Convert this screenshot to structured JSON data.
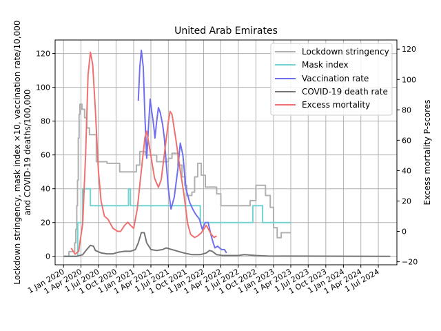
{
  "chart_data": {
    "type": "line",
    "title": "United Arab Emirates",
    "ylabel_left_line1": "Lockdown stringency, mask index ×10, vaccination rate/10,000",
    "ylabel_left_line2": "and COVID-19 deaths/100,000",
    "ylabel_right": "Excess mortality P-scores",
    "ylim_left": [
      -5,
      128
    ],
    "ylim_right": [
      -22,
      126
    ],
    "yticks_left": [
      0,
      20,
      40,
      60,
      80,
      100,
      120
    ],
    "yticks_right": [
      -20,
      0,
      20,
      40,
      60,
      80,
      100,
      120
    ],
    "xlim": [
      "2019-11-18",
      "2024-10-06"
    ],
    "xticks": [
      {
        "date": "2020-01-01",
        "label": "1 Jan 2020"
      },
      {
        "date": "2020-04-01",
        "label": "1 Apr 2020"
      },
      {
        "date": "2020-07-01",
        "label": "1 Jul 2020"
      },
      {
        "date": "2020-10-01",
        "label": "1 Oct 2020"
      },
      {
        "date": "2021-01-01",
        "label": "1 Jan 2021"
      },
      {
        "date": "2021-04-01",
        "label": "1 Apr 2021"
      },
      {
        "date": "2021-07-01",
        "label": "1 Jul 2021"
      },
      {
        "date": "2021-10-01",
        "label": "1 Oct 2021"
      },
      {
        "date": "2022-01-01",
        "label": "1 Jan 2022"
      },
      {
        "date": "2022-04-01",
        "label": "1 Apr 2022"
      },
      {
        "date": "2022-07-01",
        "label": "1 Jul 2022"
      },
      {
        "date": "2022-10-01",
        "label": "1 Oct 2022"
      },
      {
        "date": "2023-01-01",
        "label": "1 Jan 2023"
      },
      {
        "date": "2023-04-01",
        "label": "1 Apr 2023"
      },
      {
        "date": "2023-07-01",
        "label": "1 Jul 2023"
      },
      {
        "date": "2023-10-01",
        "label": "1 Oct 2023"
      },
      {
        "date": "2024-01-01",
        "label": "1 Jan 2024"
      },
      {
        "date": "2024-04-01",
        "label": "1 Apr 2024"
      },
      {
        "date": "2024-07-01",
        "label": "1 Jul 2024"
      }
    ],
    "grid": true,
    "legend_position": "top-right",
    "series": [
      {
        "name": "Lockdown stringency",
        "color": "#b0b0b0",
        "axis": "left",
        "step": true,
        "points": [
          [
            "2020-01-01",
            0
          ],
          [
            "2020-01-29",
            2.8
          ],
          [
            "2020-02-20",
            2.8
          ],
          [
            "2020-02-28",
            8
          ],
          [
            "2020-03-05",
            16
          ],
          [
            "2020-03-10",
            30
          ],
          [
            "2020-03-14",
            45
          ],
          [
            "2020-03-18",
            70
          ],
          [
            "2020-03-22",
            84
          ],
          [
            "2020-03-26",
            90
          ],
          [
            "2020-04-06",
            87
          ],
          [
            "2020-04-20",
            82
          ],
          [
            "2020-05-01",
            76
          ],
          [
            "2020-05-15",
            72
          ],
          [
            "2020-06-20",
            56
          ],
          [
            "2020-08-15",
            55
          ],
          [
            "2020-09-15",
            55
          ],
          [
            "2020-10-20",
            50
          ],
          [
            "2020-11-20",
            50
          ],
          [
            "2021-01-15",
            54
          ],
          [
            "2021-02-02",
            62
          ],
          [
            "2021-03-02",
            60
          ],
          [
            "2021-04-01",
            60
          ],
          [
            "2021-05-01",
            56
          ],
          [
            "2021-07-01",
            58
          ],
          [
            "2021-07-20",
            61
          ],
          [
            "2021-08-20",
            54
          ],
          [
            "2021-09-10",
            47
          ],
          [
            "2021-09-25",
            42
          ],
          [
            "2021-10-05",
            36
          ],
          [
            "2021-10-20",
            36
          ],
          [
            "2021-11-01",
            38
          ],
          [
            "2021-11-15",
            47
          ],
          [
            "2021-12-01",
            55
          ],
          [
            "2021-12-20",
            48
          ],
          [
            "2022-01-10",
            41
          ],
          [
            "2022-03-10",
            37
          ],
          [
            "2022-04-01",
            30
          ],
          [
            "2022-07-01",
            30
          ],
          [
            "2022-07-25",
            30
          ],
          [
            "2022-08-05",
            30
          ],
          [
            "2022-09-01",
            33
          ],
          [
            "2022-10-01",
            42
          ],
          [
            "2022-11-20",
            36
          ],
          [
            "2022-12-15",
            29
          ],
          [
            "2023-01-01",
            17
          ],
          [
            "2023-01-20",
            11
          ],
          [
            "2023-02-10",
            14
          ],
          [
            "2023-04-01",
            14
          ]
        ]
      },
      {
        "name": "Mask index",
        "color": "#73d2d2",
        "axis": "left",
        "step": true,
        "points": [
          [
            "2020-01-01",
            0
          ],
          [
            "2020-03-15",
            20
          ],
          [
            "2020-04-10",
            40
          ],
          [
            "2020-05-20",
            30
          ],
          [
            "2020-12-05",
            40
          ],
          [
            "2020-12-15",
            30
          ],
          [
            "2021-12-15",
            20
          ],
          [
            "2022-09-15",
            30
          ],
          [
            "2022-11-05",
            20
          ],
          [
            "2023-04-01",
            20
          ]
        ]
      },
      {
        "name": "Vaccination rate",
        "color": "#7070ee",
        "axis": "left",
        "step": false,
        "points": [
          [
            "2021-01-25",
            92
          ],
          [
            "2021-02-02",
            112
          ],
          [
            "2021-02-10",
            122
          ],
          [
            "2021-02-20",
            112
          ],
          [
            "2021-03-01",
            82
          ],
          [
            "2021-03-10",
            58
          ],
          [
            "2021-03-20",
            78
          ],
          [
            "2021-03-28",
            93
          ],
          [
            "2021-04-05",
            86
          ],
          [
            "2021-04-15",
            78
          ],
          [
            "2021-04-22",
            70
          ],
          [
            "2021-05-01",
            80
          ],
          [
            "2021-05-10",
            88
          ],
          [
            "2021-05-20",
            85
          ],
          [
            "2021-06-01",
            78
          ],
          [
            "2021-06-10",
            70
          ],
          [
            "2021-06-20",
            55
          ],
          [
            "2021-07-01",
            40
          ],
          [
            "2021-07-15",
            28
          ],
          [
            "2021-08-01",
            35
          ],
          [
            "2021-08-20",
            52
          ],
          [
            "2021-09-01",
            67
          ],
          [
            "2021-09-15",
            60
          ],
          [
            "2021-10-01",
            40
          ],
          [
            "2021-10-20",
            32
          ],
          [
            "2021-11-05",
            28
          ],
          [
            "2021-11-20",
            25
          ],
          [
            "2021-12-10",
            22
          ],
          [
            "2021-12-25",
            16
          ],
          [
            "2022-01-10",
            20
          ],
          [
            "2022-01-25",
            20
          ],
          [
            "2022-02-10",
            12
          ],
          [
            "2022-02-20",
            8
          ],
          [
            "2022-03-01",
            5
          ],
          [
            "2022-03-15",
            6
          ],
          [
            "2022-03-25",
            5
          ],
          [
            "2022-04-05",
            4
          ],
          [
            "2022-04-20",
            4
          ],
          [
            "2022-05-01",
            2
          ]
        ]
      },
      {
        "name": "COVID-19 death rate",
        "color": "#757575",
        "axis": "left",
        "step": false,
        "points": [
          [
            "2020-01-01",
            0
          ],
          [
            "2020-03-10",
            0
          ],
          [
            "2020-04-10",
            1
          ],
          [
            "2020-05-01",
            4
          ],
          [
            "2020-05-20",
            6.5
          ],
          [
            "2020-06-05",
            6
          ],
          [
            "2020-06-15",
            3.5
          ],
          [
            "2020-07-15",
            2
          ],
          [
            "2020-08-15",
            1.5
          ],
          [
            "2020-09-15",
            1.5
          ],
          [
            "2020-10-15",
            2.5
          ],
          [
            "2020-11-15",
            3
          ],
          [
            "2020-12-15",
            3
          ],
          [
            "2021-01-10",
            4
          ],
          [
            "2021-01-25",
            8
          ],
          [
            "2021-02-10",
            14
          ],
          [
            "2021-02-25",
            14
          ],
          [
            "2021-03-10",
            8
          ],
          [
            "2021-04-01",
            4
          ],
          [
            "2021-05-01",
            3.5
          ],
          [
            "2021-06-01",
            4
          ],
          [
            "2021-06-20",
            5
          ],
          [
            "2021-07-20",
            4
          ],
          [
            "2021-08-20",
            3
          ],
          [
            "2021-09-20",
            2
          ],
          [
            "2021-11-01",
            1
          ],
          [
            "2021-12-15",
            1
          ],
          [
            "2022-01-15",
            2
          ],
          [
            "2022-02-01",
            3.5
          ],
          [
            "2022-02-15",
            3
          ],
          [
            "2022-03-10",
            1
          ],
          [
            "2022-04-10",
            0.5
          ],
          [
            "2022-07-01",
            0.5
          ],
          [
            "2022-08-01",
            1
          ],
          [
            "2022-10-01",
            0.5
          ],
          [
            "2022-12-01",
            0.2
          ],
          [
            "2024-09-01",
            0
          ]
        ]
      },
      {
        "name": "Excess mortality",
        "color": "#f07070",
        "axis": "right",
        "step": false,
        "points": [
          [
            "2020-02-10",
            -11
          ],
          [
            "2020-03-01",
            -15
          ],
          [
            "2020-03-20",
            -13
          ],
          [
            "2020-04-10",
            5
          ],
          [
            "2020-04-25",
            50
          ],
          [
            "2020-05-08",
            103
          ],
          [
            "2020-05-20",
            118
          ],
          [
            "2020-06-01",
            110
          ],
          [
            "2020-06-15",
            80
          ],
          [
            "2020-07-01",
            40
          ],
          [
            "2020-07-15",
            20
          ],
          [
            "2020-08-01",
            10
          ],
          [
            "2020-08-20",
            8
          ],
          [
            "2020-09-15",
            2
          ],
          [
            "2020-10-10",
            0
          ],
          [
            "2020-10-25",
            0
          ],
          [
            "2020-11-15",
            4
          ],
          [
            "2020-12-01",
            6
          ],
          [
            "2020-12-15",
            4
          ],
          [
            "2021-01-01",
            2
          ],
          [
            "2021-01-20",
            15
          ],
          [
            "2021-02-10",
            40
          ],
          [
            "2021-03-01",
            62
          ],
          [
            "2021-03-10",
            66
          ],
          [
            "2021-03-25",
            55
          ],
          [
            "2021-04-20",
            35
          ],
          [
            "2021-05-10",
            29
          ],
          [
            "2021-05-25",
            34
          ],
          [
            "2021-06-15",
            56
          ],
          [
            "2021-07-01",
            72
          ],
          [
            "2021-07-10",
            79
          ],
          [
            "2021-07-20",
            77
          ],
          [
            "2021-08-10",
            60
          ],
          [
            "2021-09-01",
            40
          ],
          [
            "2021-09-20",
            25
          ],
          [
            "2021-10-10",
            5
          ],
          [
            "2021-10-25",
            -2
          ],
          [
            "2021-11-15",
            -4
          ],
          [
            "2021-12-01",
            -3
          ],
          [
            "2021-12-20",
            -1
          ],
          [
            "2022-01-15",
            4
          ],
          [
            "2022-02-10",
            -2
          ],
          [
            "2022-02-25",
            -4
          ],
          [
            "2022-03-10",
            -3
          ]
        ]
      }
    ]
  }
}
